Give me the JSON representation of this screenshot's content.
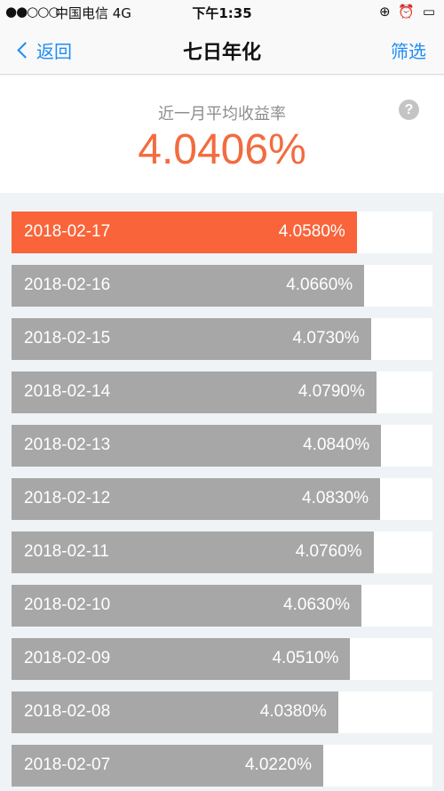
{
  "status_bar": {
    "signal": "●●○○○",
    "carrier": "中国电信  4G",
    "time": "下午1:35",
    "right_icons": "⊕ ⏰ ▭"
  },
  "nav": {
    "back_label": "返回",
    "title": "七日年化",
    "filter_label": "筛选"
  },
  "summary": {
    "label": "近一月平均收益率",
    "value": "4.0406%",
    "help_symbol": "?"
  },
  "colors": {
    "accent": "#1e8df3",
    "highlight": "#f9643a",
    "bar": "#a7a7a7"
  },
  "chart_data": {
    "type": "bar",
    "categories": [
      "2018-02-17",
      "2018-02-16",
      "2018-02-15",
      "2018-02-14",
      "2018-02-13",
      "2018-02-12",
      "2018-02-11",
      "2018-02-10",
      "2018-02-09",
      "2018-02-08",
      "2018-02-07"
    ],
    "values": [
      4.058,
      4.066,
      4.073,
      4.079,
      4.084,
      4.083,
      4.076,
      4.063,
      4.051,
      4.038,
      4.022
    ],
    "labels": [
      "4.0580%",
      "4.0660%",
      "4.0730%",
      "4.0790%",
      "4.0840%",
      "4.0830%",
      "4.0760%",
      "4.0630%",
      "4.0510%",
      "4.0380%",
      "4.0220%"
    ],
    "highlight_index": 0
  }
}
